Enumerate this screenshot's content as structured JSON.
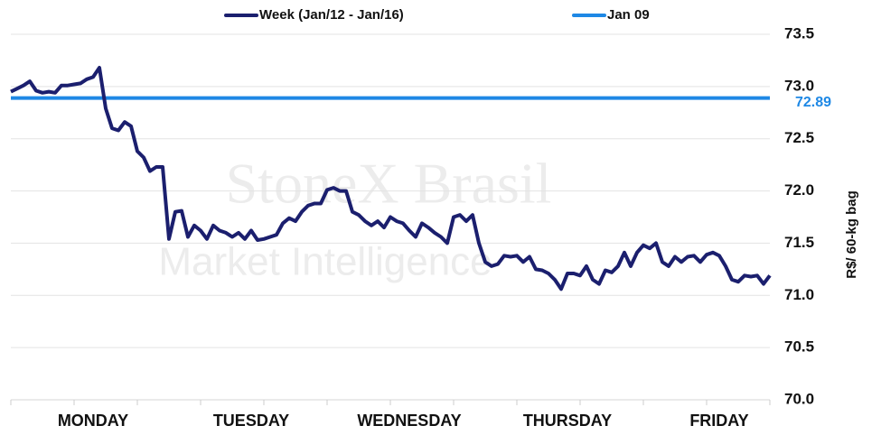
{
  "chart_data": {
    "type": "line",
    "watermark": [
      "StoneX Brasil",
      "Market Intelligence"
    ],
    "y_label": "R$/ 60-kg bag",
    "categories": [
      null,
      null,
      null,
      null,
      null,
      null,
      null,
      null,
      null,
      null,
      null,
      null,
      null,
      "MONDAY",
      null,
      null,
      null,
      null,
      null,
      null,
      null,
      null,
      null,
      null,
      null,
      null,
      null,
      null,
      null,
      null,
      null,
      null,
      null,
      null,
      null,
      null,
      null,
      null,
      "TUESDAY",
      null,
      null,
      null,
      null,
      null,
      null,
      null,
      null,
      null,
      null,
      null,
      null,
      null,
      null,
      null,
      null,
      null,
      null,
      null,
      null,
      null,
      null,
      null,
      null,
      "WEDNESDAY",
      null,
      null,
      null,
      null,
      null,
      null,
      null,
      null,
      null,
      null,
      null,
      null,
      null,
      null,
      null,
      null,
      null,
      null,
      null,
      null,
      null,
      null,
      null,
      null,
      "THURSDAY",
      null,
      null,
      null,
      null,
      null,
      null,
      null,
      null,
      null,
      null,
      null,
      null,
      null,
      null,
      null,
      null,
      null,
      null,
      null,
      null,
      null,
      null,
      null,
      "FRIDAY",
      null,
      null,
      null,
      null,
      null,
      null,
      null,
      null
    ],
    "series": [
      {
        "name": "Week (Jan/12 - Jan/16)",
        "color": "#1b1f6e",
        "values": [
          72.95,
          72.98,
          73.01,
          73.05,
          72.96,
          72.94,
          72.95,
          72.94,
          73.01,
          73.01,
          73.02,
          73.03,
          73.07,
          73.09,
          73.18,
          72.79,
          72.6,
          72.58,
          72.66,
          72.62,
          72.38,
          72.32,
          72.19,
          72.23,
          72.23,
          71.54,
          71.8,
          71.81,
          71.56,
          71.67,
          71.62,
          71.54,
          71.67,
          71.62,
          71.6,
          71.56,
          71.6,
          71.54,
          71.62,
          71.53,
          71.54,
          71.56,
          71.58,
          71.69,
          71.74,
          71.71,
          71.8,
          71.86,
          71.88,
          71.88,
          72.01,
          72.03,
          72.0,
          72.0,
          71.8,
          71.77,
          71.71,
          71.67,
          71.71,
          71.65,
          71.75,
          71.71,
          71.69,
          71.62,
          71.56,
          71.69,
          71.65,
          71.6,
          71.56,
          71.5,
          71.75,
          71.77,
          71.71,
          71.77,
          71.5,
          71.32,
          71.28,
          71.3,
          71.38,
          71.37,
          71.38,
          71.32,
          71.37,
          71.25,
          71.24,
          71.21,
          71.15,
          71.06,
          71.21,
          71.21,
          71.19,
          71.28,
          71.15,
          71.11,
          71.24,
          71.22,
          71.28,
          71.41,
          71.28,
          71.41,
          71.48,
          71.45,
          71.5,
          71.32,
          71.28,
          71.37,
          71.32,
          71.37,
          71.38,
          71.32,
          71.39,
          71.41,
          71.38,
          71.28,
          71.15,
          71.13,
          71.19,
          71.18,
          71.19,
          71.11,
          71.19
        ]
      }
    ],
    "reference_lines": [
      {
        "name": "Jan 09",
        "color": "#1e88e5",
        "value": 72.89
      }
    ],
    "ylim": [
      70,
      73.5
    ],
    "yticks": [
      {
        "value": 70,
        "label": "70.0"
      },
      70.5,
      {
        "value": 71,
        "label": "71.0"
      },
      71.5,
      {
        "value": 72,
        "label": "72.0"
      },
      72.5,
      {
        "value": 73,
        "label": "73.0"
      },
      73.5
    ],
    "grid": true
  }
}
